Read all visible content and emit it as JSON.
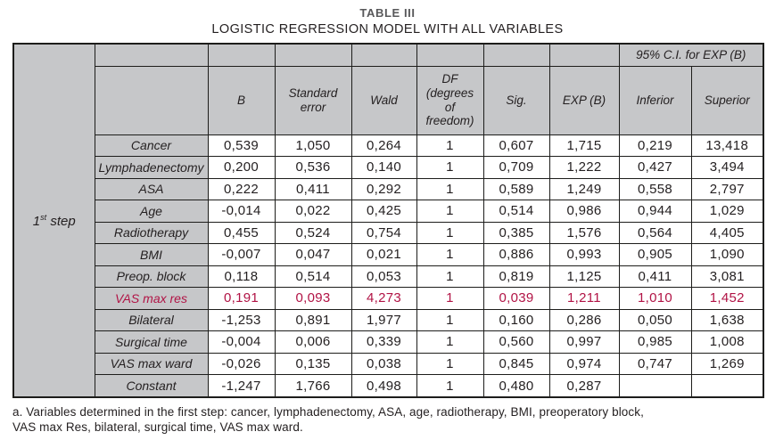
{
  "title": "TABLE III",
  "subtitle": "LOGISTIC REGRESSION MODEL WITH ALL VARIABLES",
  "colors": {
    "highlight_red": "#b11345",
    "header_gray": "#c6c7c9",
    "title_gray": "#58585a",
    "ink": "#231f20"
  },
  "table": {
    "step_label": {
      "num": "1",
      "sup": "st",
      "rest": " step"
    },
    "ci_header": "95% C.I. for EXP (B)",
    "columns": [
      "B",
      "Standard error",
      "Wald",
      "DF (degrees of freedom)",
      "Sig.",
      "EXP (B)",
      "Inferior",
      "Superior"
    ],
    "rows": [
      {
        "name": "Cancer",
        "highlight": false,
        "values": [
          "0,539",
          "1,050",
          "0,264",
          "1",
          "0,607",
          "1,715",
          "0,219",
          "13,418"
        ]
      },
      {
        "name": "Lymphadenectomy",
        "highlight": false,
        "values": [
          "0,200",
          "0,536",
          "0,140",
          "1",
          "0,709",
          "1,222",
          "0,427",
          "3,494"
        ]
      },
      {
        "name": "ASA",
        "highlight": false,
        "values": [
          "0,222",
          "0,411",
          "0,292",
          "1",
          "0,589",
          "1,249",
          "0,558",
          "2,797"
        ]
      },
      {
        "name": "Age",
        "highlight": false,
        "values": [
          "-0,014",
          "0,022",
          "0,425",
          "1",
          "0,514",
          "0,986",
          "0,944",
          "1,029"
        ]
      },
      {
        "name": "Radiotherapy",
        "highlight": false,
        "values": [
          "0,455",
          "0,524",
          "0,754",
          "1",
          "0,385",
          "1,576",
          "0,564",
          "4,405"
        ]
      },
      {
        "name": "BMI",
        "highlight": false,
        "values": [
          "-0,007",
          "0,047",
          "0,021",
          "1",
          "0,886",
          "0,993",
          "0,905",
          "1,090"
        ]
      },
      {
        "name": "Preop. block",
        "highlight": false,
        "values": [
          "0,118",
          "0,514",
          "0,053",
          "1",
          "0,819",
          "1,125",
          "0,411",
          "3,081"
        ]
      },
      {
        "name": "VAS max res",
        "highlight": true,
        "values": [
          "0,191",
          "0,093",
          "4,273",
          "1",
          "0,039",
          "1,211",
          "1,010",
          "1,452"
        ]
      },
      {
        "name": "Bilateral",
        "highlight": false,
        "values": [
          "-1,253",
          "0,891",
          "1,977",
          "1",
          "0,160",
          "0,286",
          "0,050",
          "1,638"
        ]
      },
      {
        "name": "Surgical time",
        "highlight": false,
        "values": [
          "-0,004",
          "0,006",
          "0,339",
          "1",
          "0,560",
          "0,997",
          "0,985",
          "1,008"
        ]
      },
      {
        "name": "VAS max ward",
        "highlight": false,
        "values": [
          "-0,026",
          "0,135",
          "0,038",
          "1",
          "0,845",
          "0,974",
          "0,747",
          "1,269"
        ]
      },
      {
        "name": "Constant",
        "highlight": false,
        "values": [
          "-1,247",
          "1,766",
          "0,498",
          "1",
          "0,480",
          "0,287",
          "",
          ""
        ]
      }
    ]
  },
  "footnote": {
    "lines": [
      "a. Variables determined in the first step: cancer, lymphadenectomy, ASA, age, radiotherapy, BMI, preoperatory block,",
      "VAS max Res, bilateral, surgical time, VAS max ward."
    ]
  }
}
